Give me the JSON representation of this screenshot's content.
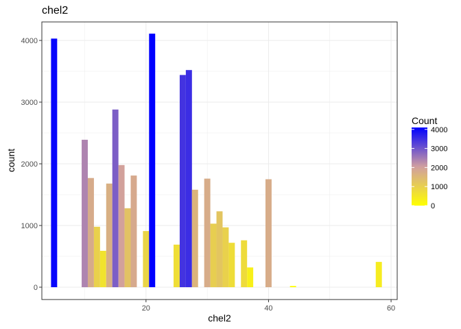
{
  "chart_data": {
    "type": "bar",
    "title": "chel2",
    "xlabel": "chel2",
    "ylabel": "count",
    "xlim": [
      3,
      61
    ],
    "ylim": [
      -200,
      4300
    ],
    "x_ticks": [
      20,
      40,
      60
    ],
    "y_ticks": [
      0,
      1000,
      2000,
      3000,
      4000
    ],
    "bin_width": 1,
    "grid": true,
    "legend": {
      "title": "Count",
      "position": "right",
      "ticks": [
        0,
        1000,
        2000,
        3000,
        4000
      ],
      "range": [
        0,
        4100
      ]
    },
    "colors": {
      "low": "#ffff00",
      "mid": "#d09ea0",
      "high": "#0000ff"
    },
    "bins": [
      {
        "x": 5,
        "count": 4030
      },
      {
        "x": 10,
        "count": 2390
      },
      {
        "x": 11,
        "count": 1770
      },
      {
        "x": 12,
        "count": 980
      },
      {
        "x": 13,
        "count": 590
      },
      {
        "x": 14,
        "count": 1680
      },
      {
        "x": 15,
        "count": 2880
      },
      {
        "x": 16,
        "count": 1980
      },
      {
        "x": 17,
        "count": 1280
      },
      {
        "x": 18,
        "count": 1810
      },
      {
        "x": 20,
        "count": 910
      },
      {
        "x": 21,
        "count": 4110
      },
      {
        "x": 25,
        "count": 690
      },
      {
        "x": 26,
        "count": 3440
      },
      {
        "x": 27,
        "count": 3520
      },
      {
        "x": 28,
        "count": 1580
      },
      {
        "x": 30,
        "count": 1760
      },
      {
        "x": 31,
        "count": 1030
      },
      {
        "x": 32,
        "count": 1230
      },
      {
        "x": 33,
        "count": 970
      },
      {
        "x": 34,
        "count": 720
      },
      {
        "x": 36,
        "count": 760
      },
      {
        "x": 37,
        "count": 320
      },
      {
        "x": 40,
        "count": 1750
      },
      {
        "x": 44,
        "count": 20
      },
      {
        "x": 58,
        "count": 410
      }
    ]
  }
}
